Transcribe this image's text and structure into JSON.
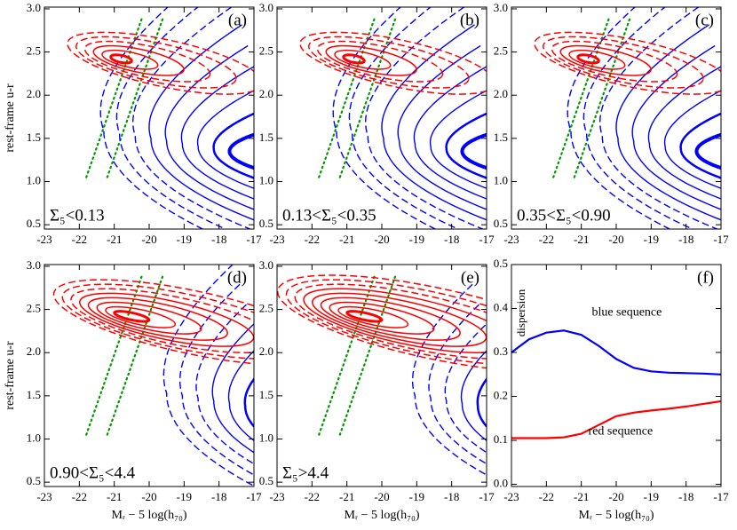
{
  "chart_data": [
    {
      "type": "contour",
      "panel_label": "(a)",
      "annotation": "Σ₅<0.13",
      "ylabel": "rest-frame u-r",
      "xlim": [
        -23,
        -17
      ],
      "ylim": [
        0.45,
        3.02
      ],
      "xticks": [
        -23,
        -22,
        -21,
        -20,
        -19,
        -18,
        -17
      ],
      "yticks": [
        0.5,
        1.0,
        1.5,
        2.0,
        2.5,
        3.0
      ]
    },
    {
      "type": "contour",
      "panel_label": "(b)",
      "annotation": "0.13<Σ₅<0.35",
      "xlim": [
        -23,
        -17
      ],
      "ylim": [
        0.45,
        3.02
      ],
      "xticks": [
        -23,
        -22,
        -21,
        -20,
        -19,
        -18,
        -17
      ],
      "yticks": [
        0.5,
        1.0,
        1.5,
        2.0,
        2.5,
        3.0
      ]
    },
    {
      "type": "contour",
      "panel_label": "(c)",
      "annotation": "0.35<Σ₅<0.90",
      "xlim": [
        -23,
        -17
      ],
      "ylim": [
        0.45,
        3.02
      ],
      "xticks": [
        -23,
        -22,
        -21,
        -20,
        -19,
        -18,
        -17
      ],
      "yticks": [
        0.5,
        1.0,
        1.5,
        2.0,
        2.5,
        3.0
      ]
    },
    {
      "type": "contour",
      "panel_label": "(d)",
      "annotation": "0.90<Σ₅<4.4",
      "ylabel": "rest-frame u-r",
      "xlabel": "Mᵣ − 5 log(h₇₀)",
      "xlim": [
        -23,
        -17
      ],
      "ylim": [
        0.45,
        3.02
      ],
      "xticks": [
        -23,
        -22,
        -21,
        -20,
        -19,
        -18,
        -17
      ],
      "yticks": [
        0.5,
        1.0,
        1.5,
        2.0,
        2.5,
        3.0
      ]
    },
    {
      "type": "contour",
      "panel_label": "(e)",
      "annotation": "Σ₅>4.4",
      "xlabel": "Mᵣ − 5 log(h₇₀)",
      "xlim": [
        -23,
        -17
      ],
      "ylim": [
        0.45,
        3.02
      ],
      "xticks": [
        -23,
        -22,
        -21,
        -20,
        -19,
        -18,
        -17
      ],
      "yticks": [
        0.5,
        1.0,
        1.5,
        2.0,
        2.5,
        3.0
      ]
    },
    {
      "type": "line",
      "panel_label": "(f)",
      "ylabel": "dispersion",
      "xlabel": "Mᵣ − 5 log(h₇₀)",
      "xlim": [
        -23,
        -17
      ],
      "ylim": [
        -0.005,
        0.5
      ],
      "xticks": [
        -23,
        -22,
        -21,
        -20,
        -19,
        -18,
        -17
      ],
      "yticks": [
        0.0,
        0.1,
        0.2,
        0.3,
        0.4,
        0.5
      ],
      "x": [
        -23,
        -22.5,
        -22,
        -21.5,
        -21,
        -20.5,
        -20,
        -19.5,
        -19,
        -18.5,
        -18,
        -17.5,
        -17
      ],
      "series": [
        {
          "name": "blue sequence",
          "color": "#0000ff",
          "values": [
            0.3,
            0.33,
            0.345,
            0.35,
            0.34,
            0.315,
            0.285,
            0.265,
            0.257,
            0.254,
            0.253,
            0.252,
            0.25
          ]
        },
        {
          "name": "red sequence",
          "color": "#ff0000",
          "values": [
            0.105,
            0.105,
            0.105,
            0.107,
            0.115,
            0.135,
            0.155,
            0.163,
            0.168,
            0.172,
            0.177,
            0.183,
            0.189
          ]
        }
      ]
    }
  ]
}
